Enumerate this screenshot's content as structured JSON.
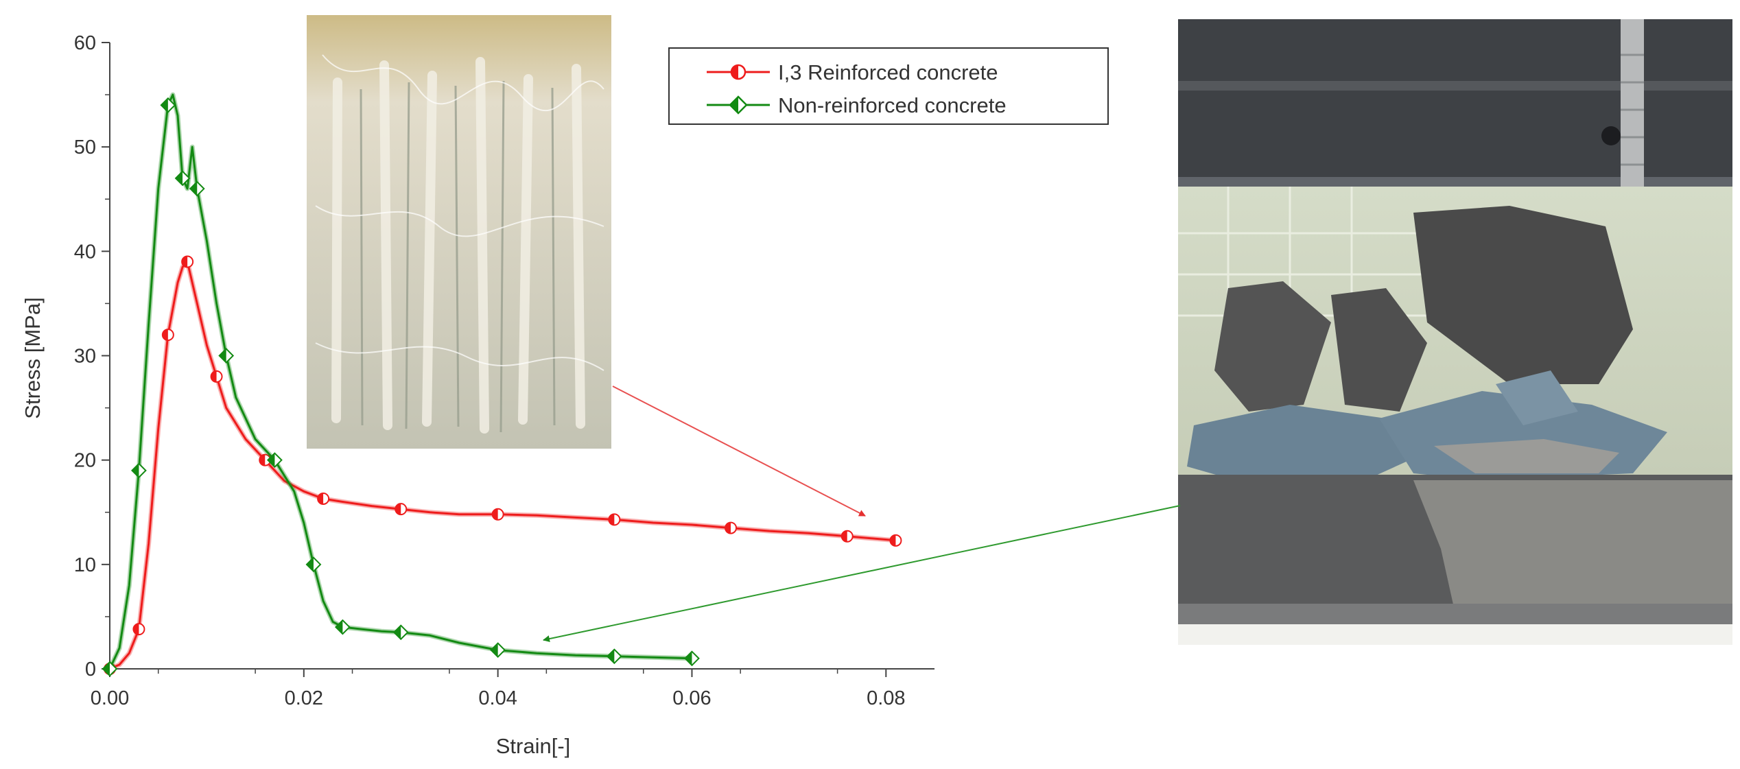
{
  "chart_data": {
    "type": "line",
    "xlabel": "Strain[-]",
    "ylabel": "Stress [MPa]",
    "xlim": [
      0,
      0.085
    ],
    "ylim": [
      0,
      60
    ],
    "xticks": [
      "0.00",
      "0.02",
      "0.04",
      "0.06",
      "0.08"
    ],
    "yticks": [
      "0",
      "10",
      "20",
      "30",
      "40",
      "50",
      "60"
    ],
    "legend_position": "top-right",
    "series": [
      {
        "name": "I,3 Reinforced concrete",
        "color": "#ee1c1c",
        "marker": "half-filled circle",
        "x": [
          0,
          0.001,
          0.002,
          0.003,
          0.004,
          0.005,
          0.006,
          0.007,
          0.0075,
          0.008,
          0.009,
          0.01,
          0.011,
          0.012,
          0.014,
          0.016,
          0.018,
          0.02,
          0.022,
          0.024,
          0.027,
          0.03,
          0.033,
          0.036,
          0.04,
          0.044,
          0.048,
          0.052,
          0.056,
          0.06,
          0.064,
          0.068,
          0.072,
          0.076,
          0.081
        ],
        "y": [
          0,
          0.4,
          1.5,
          3.8,
          12,
          23,
          32,
          37,
          38.5,
          39,
          35,
          31,
          28,
          25,
          22,
          20,
          18,
          17,
          16.3,
          16,
          15.6,
          15.3,
          15.0,
          14.8,
          14.8,
          14.7,
          14.5,
          14.3,
          14.0,
          13.8,
          13.5,
          13.2,
          13.0,
          12.7,
          12.3
        ]
      },
      {
        "name": "Non-reinforced concrete",
        "color": "#138a13",
        "marker": "half-filled diamond",
        "x": [
          0,
          0.001,
          0.002,
          0.003,
          0.004,
          0.005,
          0.006,
          0.0065,
          0.007,
          0.0075,
          0.008,
          0.0085,
          0.009,
          0.01,
          0.011,
          0.012,
          0.013,
          0.015,
          0.017,
          0.019,
          0.02,
          0.021,
          0.022,
          0.023,
          0.024,
          0.026,
          0.028,
          0.03,
          0.033,
          0.036,
          0.04,
          0.044,
          0.048,
          0.052,
          0.056,
          0.06
        ],
        "y": [
          0,
          2,
          8,
          19,
          33,
          46,
          54,
          55,
          53,
          47,
          46,
          50,
          46,
          41,
          35,
          30,
          26,
          22,
          20,
          17,
          14,
          10,
          6.5,
          4.5,
          4.0,
          3.8,
          3.6,
          3.5,
          3.2,
          2.5,
          1.8,
          1.5,
          1.3,
          1.2,
          1.1,
          1.0
        ]
      }
    ]
  }
}
